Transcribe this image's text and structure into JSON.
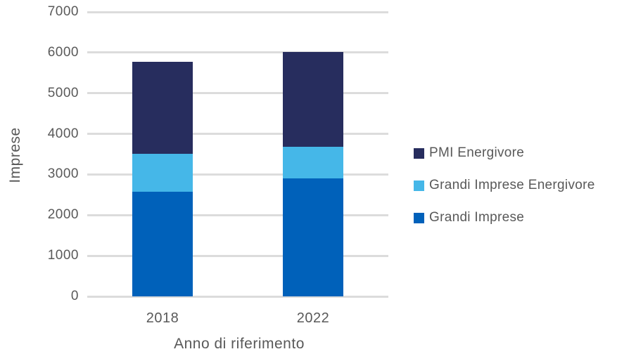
{
  "chart_data": {
    "type": "bar",
    "stacked": true,
    "title": "",
    "xlabel": "Anno di riferimento",
    "ylabel": "Imprese",
    "categories": [
      "2018",
      "2022"
    ],
    "series": [
      {
        "name": "Grandi Imprese",
        "color": "#0061ba",
        "values": [
          2570,
          2900
        ]
      },
      {
        "name": "Grandi Imprese Energivore",
        "color": "#45b7e8",
        "values": [
          940,
          780
        ]
      },
      {
        "name": "PMI Energivore",
        "color": "#272d5e",
        "values": [
          2270,
          2340
        ]
      }
    ],
    "totals": [
      5780,
      6020
    ],
    "ylim": [
      0,
      7000
    ],
    "ytick_step": 1000,
    "yticks": [
      0,
      1000,
      2000,
      3000,
      4000,
      5000,
      6000,
      7000
    ],
    "grid": true,
    "legend_position": "right",
    "legend_order": [
      "PMI Energivore",
      "Grandi Imprese Energivore",
      "Grandi Imprese"
    ]
  },
  "style": {
    "grid_color": "#dcdcdc",
    "text_color": "#595959",
    "background": "#ffffff"
  }
}
